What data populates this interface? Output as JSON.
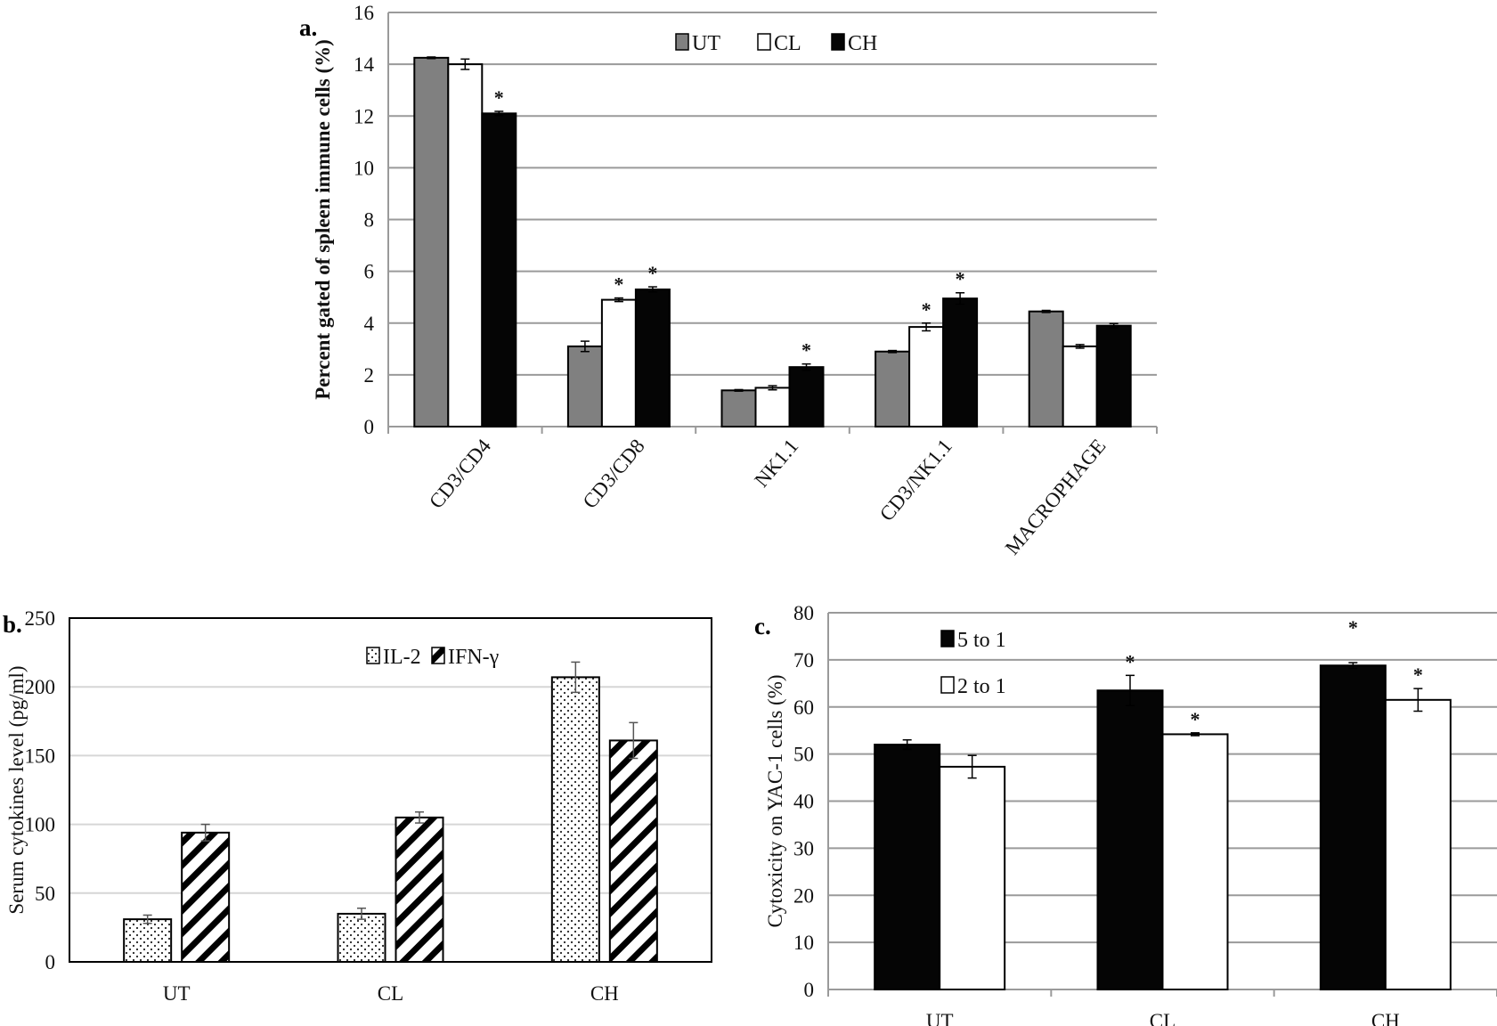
{
  "chart_data": [
    {
      "panel_label": "a.",
      "type": "bar",
      "title": "",
      "xlabel": "",
      "ylabel": "Percent gated of spleen immune cells (%)",
      "ylim": [
        0,
        16
      ],
      "yticks": [
        0,
        2,
        4,
        6,
        8,
        10,
        12,
        14,
        16
      ],
      "grid": true,
      "legend_position": "top-center",
      "categories": [
        "CD3/CD4",
        "CD3/CD8",
        "NK1.1",
        "CD3/NK1.1",
        "MACROPHAGE"
      ],
      "series": [
        {
          "name": "UT",
          "color": "#808080",
          "values": [
            14.25,
            3.1,
            1.4,
            2.9,
            4.45
          ],
          "errors": [
            0.03,
            0.2,
            0.03,
            0.04,
            0.04
          ],
          "significant": [
            false,
            false,
            false,
            false,
            false
          ]
        },
        {
          "name": "CL",
          "color": "#ffffff",
          "values": [
            14.0,
            4.9,
            1.5,
            3.85,
            3.1
          ],
          "errors": [
            0.2,
            0.07,
            0.08,
            0.15,
            0.07
          ],
          "significant": [
            false,
            true,
            false,
            true,
            false
          ]
        },
        {
          "name": "CH",
          "color": "#050505",
          "values": [
            12.1,
            5.3,
            2.3,
            4.95,
            3.9
          ],
          "errors": [
            0.08,
            0.1,
            0.12,
            0.22,
            0.08
          ],
          "significant": [
            true,
            true,
            true,
            true,
            false
          ]
        }
      ],
      "significance_marker": "*"
    },
    {
      "panel_label": "b.",
      "type": "bar",
      "title": "",
      "xlabel": "",
      "ylabel": "Serum cytokines level (pg/ml)",
      "ylim": [
        0,
        250
      ],
      "yticks": [
        0,
        50,
        100,
        150,
        200,
        250
      ],
      "grid": true,
      "legend_position": "top-center",
      "categories": [
        "UT",
        "CL",
        "CH"
      ],
      "series": [
        {
          "name": "IL-2",
          "pattern": "dotted",
          "values": [
            31,
            35,
            207
          ],
          "errors": [
            3,
            4,
            11
          ],
          "significant": [
            false,
            false,
            false
          ]
        },
        {
          "name": "IFN-γ",
          "pattern": "diagonal-hatch",
          "values": [
            94,
            105,
            161
          ],
          "errors": [
            6,
            4,
            13
          ],
          "significant": [
            false,
            false,
            false
          ]
        }
      ]
    },
    {
      "panel_label": "c.",
      "type": "bar",
      "title": "",
      "xlabel": "",
      "ylabel": "Cytoxicity on YAC-1 cells (%)",
      "ylim": [
        0,
        80
      ],
      "yticks": [
        0,
        10,
        20,
        30,
        40,
        50,
        60,
        70,
        80
      ],
      "grid": true,
      "legend_position": "top-left",
      "categories": [
        "UT",
        "CL",
        "CH"
      ],
      "series": [
        {
          "name": "5  to 1",
          "color": "#050505",
          "values": [
            52,
            63.5,
            68.8
          ],
          "errors": [
            1,
            3.2,
            0.6
          ],
          "significant": [
            false,
            true,
            true
          ]
        },
        {
          "name": "2 to 1",
          "color": "#ffffff",
          "values": [
            47.3,
            54.2,
            61.5
          ],
          "errors": [
            2.4,
            0.3,
            2.4
          ],
          "significant": [
            false,
            true,
            true
          ]
        }
      ],
      "significance_marker": "*"
    }
  ]
}
